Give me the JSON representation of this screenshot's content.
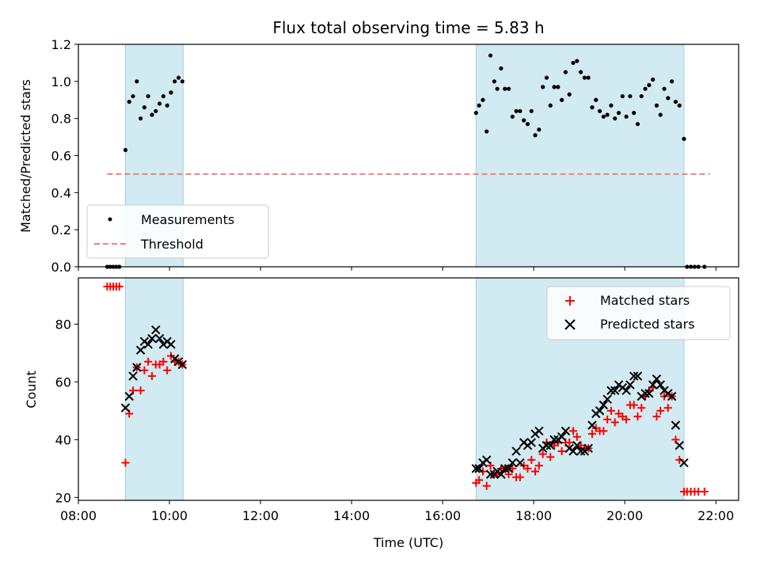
{
  "chart_data": [
    {
      "type": "scatter",
      "title": "Flux total observing time = 5.83 h",
      "ylabel": "Matched/Predicted stars",
      "xlabel": "",
      "xlim": [
        "08:00",
        "22:30"
      ],
      "ylim": [
        0,
        1.2
      ],
      "yticks": [
        "0.0",
        "0.2",
        "0.4",
        "0.6",
        "0.8",
        "1.0",
        "1.2"
      ],
      "xticks": [
        "08:00",
        "10:00",
        "12:00",
        "14:00",
        "16:00",
        "18:00",
        "20:00",
        "22:00"
      ],
      "show_xtick_labels": false,
      "legend_position": "lower-left",
      "shaded_intervals": [
        [
          "09:02",
          "10:18"
        ],
        [
          "16:44",
          "21:18"
        ]
      ],
      "shade_color": "#add8e6",
      "threshold": {
        "name": "Threshold",
        "value": 0.5,
        "x_range": [
          "08:38",
          "21:52"
        ],
        "color": "#f08080"
      },
      "series": [
        {
          "name": "Measurements",
          "color": "#000000",
          "marker": "dot",
          "points": [
            [
              "08:38",
              0.0
            ],
            [
              "08:42",
              0.0
            ],
            [
              "08:46",
              0.0
            ],
            [
              "08:50",
              0.0
            ],
            [
              "08:54",
              0.0
            ],
            [
              "09:02",
              0.63
            ],
            [
              "09:07",
              0.89
            ],
            [
              "09:12",
              0.92
            ],
            [
              "09:17",
              1.0
            ],
            [
              "09:22",
              0.8
            ],
            [
              "09:27",
              0.86
            ],
            [
              "09:32",
              0.92
            ],
            [
              "09:37",
              0.82
            ],
            [
              "09:42",
              0.84
            ],
            [
              "09:47",
              0.88
            ],
            [
              "09:52",
              0.92
            ],
            [
              "09:57",
              0.87
            ],
            [
              "10:02",
              0.94
            ],
            [
              "10:07",
              1.0
            ],
            [
              "10:12",
              1.02
            ],
            [
              "10:17",
              1.0
            ],
            [
              "16:44",
              0.83
            ],
            [
              "16:48",
              0.87
            ],
            [
              "16:53",
              0.9
            ],
            [
              "16:58",
              0.73
            ],
            [
              "17:03",
              1.14
            ],
            [
              "17:08",
              1.0
            ],
            [
              "17:12",
              0.96
            ],
            [
              "17:17",
              1.07
            ],
            [
              "17:22",
              0.96
            ],
            [
              "17:27",
              0.96
            ],
            [
              "17:32",
              0.81
            ],
            [
              "17:37",
              0.84
            ],
            [
              "17:42",
              0.84
            ],
            [
              "17:47",
              0.79
            ],
            [
              "17:52",
              0.77
            ],
            [
              "17:57",
              0.84
            ],
            [
              "18:02",
              0.71
            ],
            [
              "18:07",
              0.74
            ],
            [
              "18:12",
              0.97
            ],
            [
              "18:17",
              1.02
            ],
            [
              "18:22",
              0.87
            ],
            [
              "18:27",
              0.97
            ],
            [
              "18:32",
              0.97
            ],
            [
              "18:37",
              0.9
            ],
            [
              "18:42",
              1.05
            ],
            [
              "18:47",
              0.93
            ],
            [
              "18:52",
              1.1
            ],
            [
              "18:57",
              1.11
            ],
            [
              "19:02",
              1.05
            ],
            [
              "19:07",
              1.02
            ],
            [
              "19:12",
              1.02
            ],
            [
              "19:17",
              0.86
            ],
            [
              "19:22",
              0.9
            ],
            [
              "19:27",
              0.84
            ],
            [
              "19:32",
              0.81
            ],
            [
              "19:37",
              0.82
            ],
            [
              "19:42",
              0.87
            ],
            [
              "19:47",
              0.8
            ],
            [
              "19:52",
              0.83
            ],
            [
              "19:57",
              0.92
            ],
            [
              "20:02",
              0.81
            ],
            [
              "20:07",
              0.92
            ],
            [
              "20:12",
              0.83
            ],
            [
              "20:17",
              0.77
            ],
            [
              "20:22",
              0.92
            ],
            [
              "20:27",
              0.96
            ],
            [
              "20:32",
              0.98
            ],
            [
              "20:37",
              1.01
            ],
            [
              "20:42",
              0.87
            ],
            [
              "20:47",
              0.82
            ],
            [
              "20:52",
              0.96
            ],
            [
              "20:57",
              0.91
            ],
            [
              "21:02",
              1.0
            ],
            [
              "21:07",
              0.89
            ],
            [
              "21:12",
              0.87
            ],
            [
              "21:18",
              0.69
            ],
            [
              "21:22",
              0.0
            ],
            [
              "21:27",
              0.0
            ],
            [
              "21:32",
              0.0
            ],
            [
              "21:37",
              0.0
            ],
            [
              "21:45",
              0.0
            ]
          ]
        }
      ]
    },
    {
      "type": "scatter",
      "title": "",
      "xlabel": "Time (UTC)",
      "ylabel": "Count",
      "xlim": [
        "08:00",
        "22:30"
      ],
      "ylim": [
        19,
        96
      ],
      "yticks": [
        "20",
        "40",
        "60",
        "80"
      ],
      "xticks": [
        "08:00",
        "10:00",
        "12:00",
        "14:00",
        "16:00",
        "18:00",
        "20:00",
        "22:00"
      ],
      "legend_position": "upper-right",
      "shaded_intervals": [
        [
          "09:02",
          "10:18"
        ],
        [
          "16:44",
          "21:18"
        ]
      ],
      "shade_color": "#add8e6",
      "series": [
        {
          "name": "Matched stars",
          "color": "#ff0000",
          "marker": "plus",
          "points": [
            [
              "08:38",
              93
            ],
            [
              "08:42",
              93
            ],
            [
              "08:46",
              93
            ],
            [
              "08:50",
              93
            ],
            [
              "08:54",
              93
            ],
            [
              "09:02",
              32
            ],
            [
              "09:07",
              49
            ],
            [
              "09:12",
              57
            ],
            [
              "09:17",
              65
            ],
            [
              "09:22",
              57
            ],
            [
              "09:27",
              64
            ],
            [
              "09:32",
              67
            ],
            [
              "09:37",
              62
            ],
            [
              "09:42",
              66
            ],
            [
              "09:47",
              66
            ],
            [
              "09:52",
              67
            ],
            [
              "09:57",
              64
            ],
            [
              "10:02",
              69
            ],
            [
              "10:07",
              67
            ],
            [
              "10:12",
              67
            ],
            [
              "10:17",
              66
            ],
            [
              "16:44",
              25
            ],
            [
              "16:48",
              26
            ],
            [
              "16:53",
              29
            ],
            [
              "16:58",
              24
            ],
            [
              "17:03",
              31
            ],
            [
              "17:08",
              28
            ],
            [
              "17:12",
              28
            ],
            [
              "17:17",
              30
            ],
            [
              "17:22",
              30
            ],
            [
              "17:27",
              28
            ],
            [
              "17:32",
              30
            ],
            [
              "17:37",
              27
            ],
            [
              "17:42",
              27
            ],
            [
              "17:47",
              31
            ],
            [
              "17:52",
              30
            ],
            [
              "17:57",
              33
            ],
            [
              "18:02",
              29
            ],
            [
              "18:07",
              31
            ],
            [
              "18:12",
              35
            ],
            [
              "18:17",
              39
            ],
            [
              "18:22",
              34
            ],
            [
              "18:27",
              38
            ],
            [
              "18:32",
              39
            ],
            [
              "18:37",
              36
            ],
            [
              "18:42",
              39
            ],
            [
              "18:47",
              39
            ],
            [
              "18:52",
              43
            ],
            [
              "18:57",
              41
            ],
            [
              "19:02",
              38
            ],
            [
              "19:07",
              37
            ],
            [
              "19:12",
              37
            ],
            [
              "19:17",
              42
            ],
            [
              "19:22",
              44
            ],
            [
              "19:27",
              43
            ],
            [
              "19:32",
              43
            ],
            [
              "19:37",
              47
            ],
            [
              "19:42",
              50
            ],
            [
              "19:47",
              46
            ],
            [
              "19:52",
              49
            ],
            [
              "19:57",
              48
            ],
            [
              "20:02",
              47
            ],
            [
              "20:07",
              52
            ],
            [
              "20:12",
              52
            ],
            [
              "20:17",
              48
            ],
            [
              "20:22",
              51
            ],
            [
              "20:27",
              55
            ],
            [
              "20:32",
              57
            ],
            [
              "20:37",
              58
            ],
            [
              "20:42",
              48
            ],
            [
              "20:47",
              50
            ],
            [
              "20:52",
              55
            ],
            [
              "20:57",
              51
            ],
            [
              "21:02",
              55
            ],
            [
              "21:07",
              40
            ],
            [
              "21:12",
              33
            ],
            [
              "21:18",
              22
            ],
            [
              "21:22",
              22
            ],
            [
              "21:27",
              22
            ],
            [
              "21:32",
              22
            ],
            [
              "21:37",
              22
            ],
            [
              "21:45",
              22
            ]
          ]
        },
        {
          "name": "Predicted stars",
          "color": "#000000",
          "marker": "cross",
          "points": [
            [
              "09:02",
              51
            ],
            [
              "09:07",
              55
            ],
            [
              "09:12",
              62
            ],
            [
              "09:17",
              65
            ],
            [
              "09:22",
              71
            ],
            [
              "09:27",
              74
            ],
            [
              "09:32",
              73
            ],
            [
              "09:37",
              75
            ],
            [
              "09:42",
              78
            ],
            [
              "09:47",
              75
            ],
            [
              "09:52",
              73
            ],
            [
              "09:57",
              74
            ],
            [
              "10:02",
              73
            ],
            [
              "10:07",
              68
            ],
            [
              "10:12",
              67
            ],
            [
              "10:17",
              66
            ],
            [
              "16:44",
              30
            ],
            [
              "16:48",
              30
            ],
            [
              "16:53",
              32
            ],
            [
              "16:58",
              33
            ],
            [
              "17:03",
              28
            ],
            [
              "17:08",
              28
            ],
            [
              "17:12",
              29
            ],
            [
              "17:17",
              28
            ],
            [
              "17:22",
              30
            ],
            [
              "17:27",
              30
            ],
            [
              "17:32",
              32
            ],
            [
              "17:37",
              36
            ],
            [
              "17:42",
              32
            ],
            [
              "17:47",
              39
            ],
            [
              "17:52",
              38
            ],
            [
              "17:57",
              39
            ],
            [
              "18:02",
              42
            ],
            [
              "18:07",
              43
            ],
            [
              "18:12",
              37
            ],
            [
              "18:17",
              38
            ],
            [
              "18:22",
              38
            ],
            [
              "18:27",
              40
            ],
            [
              "18:32",
              40
            ],
            [
              "18:37",
              41
            ],
            [
              "18:42",
              43
            ],
            [
              "18:47",
              37
            ],
            [
              "18:52",
              36
            ],
            [
              "18:57",
              38
            ],
            [
              "19:02",
              36
            ],
            [
              "19:07",
              36
            ],
            [
              "19:12",
              37
            ],
            [
              "19:17",
              45
            ],
            [
              "19:22",
              49
            ],
            [
              "19:27",
              50
            ],
            [
              "19:32",
              52
            ],
            [
              "19:37",
              54
            ],
            [
              "19:42",
              57
            ],
            [
              "19:47",
              57
            ],
            [
              "19:52",
              59
            ],
            [
              "19:57",
              58
            ],
            [
              "20:02",
              57
            ],
            [
              "20:07",
              59
            ],
            [
              "20:12",
              62
            ],
            [
              "20:17",
              62
            ],
            [
              "20:22",
              55
            ],
            [
              "20:27",
              56
            ],
            [
              "20:32",
              56
            ],
            [
              "20:37",
              59
            ],
            [
              "20:42",
              61
            ],
            [
              "20:47",
              59
            ],
            [
              "20:52",
              57
            ],
            [
              "20:57",
              56
            ],
            [
              "21:02",
              55
            ],
            [
              "21:07",
              45
            ],
            [
              "21:12",
              38
            ],
            [
              "21:18",
              32
            ]
          ]
        }
      ]
    }
  ]
}
